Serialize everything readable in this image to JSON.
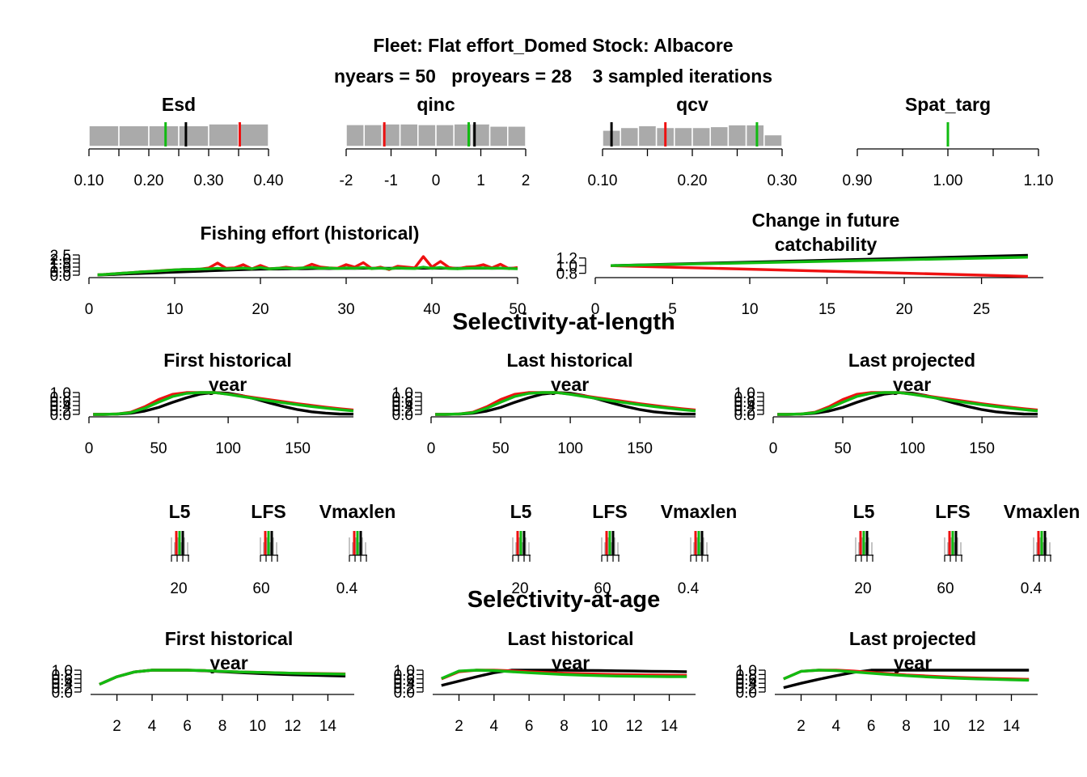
{
  "header": {
    "line1": "Fleet: Flat effort_Domed Stock: Albacore",
    "line2": "nyears = 50   proyears = 28    3 sampled iterations"
  },
  "sections": {
    "length": "Selectivity-at-length",
    "age": "Selectivity-at-age"
  },
  "colors": {
    "iter1": "#000000",
    "iter2": "#ee1111",
    "iter3": "#11bb11",
    "hist": "#aaaaaa"
  },
  "chart_data": [
    {
      "type": "bar",
      "id": "esd",
      "title": "Esd",
      "xlim": [
        0.1,
        0.4
      ],
      "ticks": [
        "0.10",
        "0.20",
        "0.30",
        "0.40"
      ],
      "tick_values": [
        0.1,
        0.2,
        0.3,
        0.4
      ],
      "minor_ticks": [
        0.15,
        0.25,
        0.35
      ],
      "bins": [
        0.1,
        0.15,
        0.2,
        0.25,
        0.3,
        0.35,
        0.4
      ],
      "counts": [
        0.92,
        0.92,
        0.92,
        0.92,
        1.0,
        1.0
      ],
      "lines": [
        0.262,
        0.352,
        0.228
      ]
    },
    {
      "type": "bar",
      "id": "qinc",
      "title": "qinc",
      "xlim": [
        -2,
        2
      ],
      "ticks": [
        "-2",
        "-1",
        "0",
        "1",
        "2"
      ],
      "tick_values": [
        -2,
        -1,
        0,
        1,
        2
      ],
      "minor_ticks": [],
      "bins": [
        -2,
        -1.6,
        -1.2,
        -0.8,
        -0.4,
        0,
        0.4,
        0.8,
        1.2,
        1.6,
        2
      ],
      "counts": [
        0.97,
        0.97,
        1.0,
        1.0,
        0.97,
        0.97,
        1.0,
        1.0,
        0.9,
        0.9
      ],
      "lines": [
        0.86,
        -1.15,
        0.73
      ]
    },
    {
      "type": "bar",
      "id": "qcv",
      "title": "qcv",
      "xlim": [
        0.1,
        0.3
      ],
      "ticks": [
        "0.10",
        "0.20",
        "0.30"
      ],
      "tick_values": [
        0.1,
        0.2,
        0.3
      ],
      "minor_ticks": [
        0.15,
        0.25
      ],
      "bins": [
        0.1,
        0.12,
        0.14,
        0.16,
        0.18,
        0.2,
        0.22,
        0.24,
        0.26,
        0.28,
        0.3
      ],
      "counts": [
        0.72,
        0.84,
        0.92,
        0.84,
        0.84,
        0.84,
        0.88,
        0.96,
        0.96,
        0.52
      ],
      "lines": [
        0.11,
        0.17,
        0.272
      ]
    },
    {
      "type": "bar",
      "id": "spat",
      "title": "Spat_targ",
      "xlim": [
        0.9,
        1.1
      ],
      "ticks": [
        "0.90",
        "1.00",
        "1.10"
      ],
      "tick_values": [
        0.9,
        1.0,
        1.1
      ],
      "minor_ticks": [
        0.95,
        1.05
      ],
      "bins": [],
      "counts": [],
      "lines": [
        1.0,
        1.0,
        1.0
      ]
    },
    {
      "type": "line",
      "id": "effort",
      "title": "Fishing effort (historical)",
      "xlim": [
        0,
        50
      ],
      "ylim": [
        0,
        2.5
      ],
      "xticks": [
        "0",
        "10",
        "20",
        "30",
        "40",
        "50"
      ],
      "xtick_values": [
        0,
        10,
        20,
        30,
        40,
        50
      ],
      "yticks": [
        "0.0",
        "0.5",
        "1.0",
        "1.5",
        "2.0",
        "2.5"
      ],
      "ytick_values": [
        0,
        0.5,
        1.0,
        1.5,
        2.0,
        2.5
      ],
      "x": [
        1,
        2,
        3,
        4,
        5,
        6,
        7,
        8,
        9,
        10,
        11,
        12,
        13,
        14,
        15,
        16,
        17,
        18,
        19,
        20,
        21,
        22,
        23,
        24,
        25,
        26,
        27,
        28,
        29,
        30,
        31,
        32,
        33,
        34,
        35,
        36,
        37,
        38,
        39,
        40,
        41,
        42,
        43,
        44,
        45,
        46,
        47,
        48,
        49,
        50
      ],
      "series": [
        {
          "values": [
            0.02,
            0.06,
            0.1,
            0.14,
            0.18,
            0.22,
            0.26,
            0.3,
            0.34,
            0.38,
            0.42,
            0.46,
            0.5,
            0.54,
            0.58,
            0.62,
            0.66,
            0.7,
            0.72,
            0.74,
            0.76,
            0.76,
            0.78,
            0.8,
            0.8,
            0.82,
            0.84,
            0.82,
            0.84,
            0.86,
            0.84,
            0.86,
            0.86,
            0.86,
            0.86,
            0.86,
            0.86,
            0.86,
            0.86,
            0.86,
            0.86,
            0.86,
            0.86,
            0.86,
            0.86,
            0.86,
            0.86,
            0.86,
            0.86,
            0.86
          ]
        },
        {
          "values": [
            0.05,
            0.1,
            0.18,
            0.25,
            0.32,
            0.4,
            0.46,
            0.52,
            0.6,
            0.66,
            0.7,
            0.72,
            0.76,
            0.9,
            1.5,
            0.85,
            0.9,
            1.3,
            0.78,
            1.2,
            0.8,
            0.85,
            1.0,
            0.85,
            0.9,
            1.35,
            1.0,
            0.9,
            0.85,
            1.3,
            1.0,
            1.55,
            0.8,
            1.0,
            0.7,
            1.1,
            1.0,
            0.9,
            2.3,
            1.0,
            1.7,
            0.95,
            0.8,
            1.0,
            1.05,
            1.3,
            0.9,
            1.35,
            0.8,
            0.95
          ]
        },
        {
          "values": [
            0.05,
            0.1,
            0.18,
            0.25,
            0.32,
            0.4,
            0.46,
            0.52,
            0.58,
            0.66,
            0.7,
            0.72,
            0.76,
            0.78,
            0.86,
            0.78,
            0.82,
            0.88,
            0.8,
            0.95,
            0.78,
            0.85,
            0.88,
            0.8,
            0.9,
            0.95,
            0.85,
            0.88,
            0.82,
            0.9,
            0.85,
            0.95,
            0.82,
            0.88,
            0.78,
            0.9,
            0.85,
            0.82,
            1.0,
            0.85,
            0.95,
            0.82,
            0.8,
            0.85,
            0.88,
            0.9,
            0.85,
            0.88,
            0.82,
            0.8
          ]
        }
      ]
    },
    {
      "type": "line",
      "id": "future_q",
      "title_lines": [
        "Change in future",
        "catchability"
      ],
      "xlim": [
        0,
        29
      ],
      "ylim": [
        0.75,
        1.3
      ],
      "xticks": [
        "0",
        "5",
        "10",
        "15",
        "20",
        "25"
      ],
      "xtick_values": [
        0,
        5,
        10,
        15,
        20,
        25
      ],
      "yticks": [
        "0.8",
        "1.0",
        "1.2"
      ],
      "ytick_values": [
        0.8,
        1.0,
        1.2
      ],
      "x": [
        1,
        28
      ],
      "series": [
        {
          "values": [
            1.0,
            1.27
          ]
        },
        {
          "values": [
            1.0,
            0.72
          ]
        },
        {
          "values": [
            1.0,
            1.22
          ]
        }
      ]
    },
    {
      "type": "line",
      "id": "sel_len",
      "panel_titles": [
        [
          "First historical",
          "year"
        ],
        [
          "Last historical",
          "year"
        ],
        [
          "Last projected",
          "year"
        ]
      ],
      "xlim": [
        0,
        190
      ],
      "ylim": [
        0,
        1.0
      ],
      "xticks": [
        "0",
        "50",
        "100",
        "150"
      ],
      "xtick_values": [
        0,
        50,
        100,
        150
      ],
      "yticks": [
        "0.0",
        "0.2",
        "0.4",
        "0.6",
        "0.8",
        "1.0"
      ],
      "ytick_values": [
        0,
        0.2,
        0.4,
        0.6,
        0.8,
        1.0
      ],
      "x": [
        3,
        10,
        20,
        30,
        40,
        50,
        60,
        70,
        80,
        90,
        100,
        110,
        120,
        130,
        140,
        150,
        160,
        170,
        180,
        190
      ],
      "series": [
        {
          "values": [
            0.0,
            0.0,
            0.01,
            0.05,
            0.15,
            0.32,
            0.55,
            0.76,
            0.93,
            1.0,
            0.97,
            0.86,
            0.7,
            0.52,
            0.36,
            0.22,
            0.12,
            0.06,
            0.02,
            0.01
          ]
        },
        {
          "values": [
            0.0,
            0.0,
            0.02,
            0.1,
            0.35,
            0.68,
            0.92,
            1.0,
            1.0,
            1.0,
            0.93,
            0.85,
            0.76,
            0.67,
            0.58,
            0.49,
            0.41,
            0.33,
            0.26,
            0.2
          ]
        },
        {
          "values": [
            0.0,
            0.0,
            0.02,
            0.08,
            0.28,
            0.56,
            0.82,
            0.96,
            1.0,
            1.0,
            0.92,
            0.82,
            0.72,
            0.62,
            0.53,
            0.44,
            0.36,
            0.29,
            0.22,
            0.16
          ]
        }
      ]
    },
    {
      "type": "line",
      "id": "sel_age",
      "panel_titles": [
        [
          "First historical",
          "year"
        ],
        [
          "Last historical",
          "year"
        ],
        [
          "Last projected",
          "year"
        ]
      ],
      "xlim": [
        0.5,
        15.5
      ],
      "ylim": [
        0,
        1.0
      ],
      "xticks": [
        "2",
        "4",
        "6",
        "8",
        "10",
        "12",
        "14"
      ],
      "xtick_values": [
        2,
        4,
        6,
        8,
        10,
        12,
        14
      ],
      "yticks": [
        "0.0",
        "0.2",
        "0.4",
        "0.6",
        "0.8",
        "1.0"
      ],
      "ytick_values": [
        0,
        0.2,
        0.4,
        0.6,
        0.8,
        1.0
      ],
      "x": [
        1,
        2,
        3,
        4,
        5,
        6,
        7,
        8,
        9,
        10,
        11,
        12,
        13,
        14,
        15
      ],
      "panels": [
        [
          {
            "values": [
              0.35,
              0.7,
              0.92,
              1.0,
              1.0,
              1.0,
              0.97,
              0.93,
              0.89,
              0.85,
              0.82,
              0.79,
              0.77,
              0.75,
              0.73
            ]
          },
          {
            "values": [
              0.35,
              0.7,
              0.92,
              1.0,
              1.0,
              1.0,
              0.98,
              0.95,
              0.92,
              0.9,
              0.88,
              0.86,
              0.85,
              0.84,
              0.83
            ]
          },
          {
            "values": [
              0.35,
              0.7,
              0.92,
              1.0,
              1.0,
              1.0,
              0.98,
              0.95,
              0.92,
              0.9,
              0.88,
              0.86,
              0.84,
              0.83,
              0.82
            ]
          }
        ],
        [
          {
            "values": [
              0.3,
              0.5,
              0.7,
              0.88,
              1.0,
              1.0,
              1.0,
              1.0,
              0.99,
              0.98,
              0.97,
              0.96,
              0.95,
              0.94,
              0.93
            ]
          },
          {
            "values": [
              0.6,
              0.93,
              1.0,
              1.0,
              0.97,
              0.93,
              0.89,
              0.86,
              0.84,
              0.82,
              0.8,
              0.79,
              0.78,
              0.77,
              0.76
            ]
          },
          {
            "values": [
              0.62,
              0.96,
              1.0,
              0.98,
              0.93,
              0.88,
              0.84,
              0.8,
              0.77,
              0.75,
              0.73,
              0.72,
              0.71,
              0.7,
              0.7
            ]
          }
        ],
        [
          {
            "values": [
              0.2,
              0.4,
              0.58,
              0.75,
              0.9,
              1.0,
              1.0,
              1.0,
              1.0,
              1.0,
              1.0,
              1.0,
              1.0,
              1.0,
              1.0
            ]
          },
          {
            "values": [
              0.6,
              0.95,
              1.0,
              1.0,
              0.96,
              0.9,
              0.84,
              0.78,
              0.74,
              0.7,
              0.67,
              0.64,
              0.62,
              0.6,
              0.58
            ]
          },
          {
            "values": [
              0.6,
              0.95,
              1.0,
              0.98,
              0.92,
              0.86,
              0.8,
              0.75,
              0.7,
              0.66,
              0.63,
              0.6,
              0.58,
              0.56,
              0.54
            ]
          }
        ]
      ]
    },
    {
      "type": "bar",
      "id": "len_params",
      "labels": [
        "L5",
        "LFS",
        "Vmaxlen"
      ],
      "ticks": [
        "20",
        "60",
        "0.4"
      ],
      "panels": [
        [
          {
            "lines": [
              23,
              25,
              27
            ],
            "hist": 6
          },
          {
            "lines": [
              62,
              60,
              64
            ],
            "hist": 6
          },
          {
            "lines": [
              0.47,
              0.44,
              0.45
            ],
            "hist": 6
          }
        ],
        [
          {
            "lines": [
              21,
              24,
              26
            ],
            "hist": 6
          },
          {
            "lines": [
              63,
              60,
              64
            ],
            "hist": 6
          },
          {
            "lines": [
              0.48,
              0.44,
              0.45
            ],
            "hist": 6
          }
        ],
        [
          {
            "lines": [
              23,
              25,
              26
            ],
            "hist": 6
          },
          {
            "lines": [
              63,
              60,
              64
            ],
            "hist": 6
          },
          {
            "lines": [
              0.49,
              0.44,
              0.45
            ],
            "hist": 6
          }
        ]
      ]
    }
  ]
}
